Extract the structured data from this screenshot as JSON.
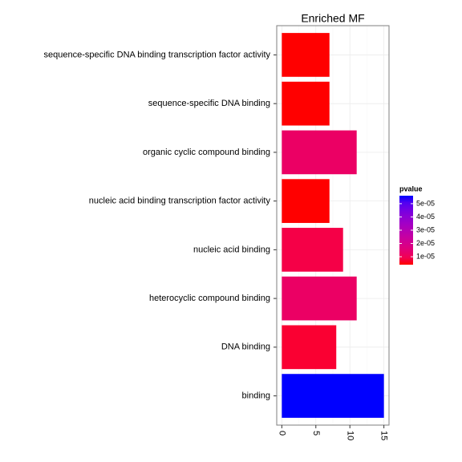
{
  "chart_data": {
    "type": "bar",
    "orientation": "horizontal",
    "title": "Enriched MF",
    "categories": [
      "sequence-specific DNA binding transcription factor activity",
      "sequence-specific DNA binding",
      "organic cyclic compound binding",
      "nucleic acid binding transcription factor activity",
      "nucleic acid binding",
      "heterocyclic compound binding",
      "DNA binding",
      "binding"
    ],
    "values": [
      7,
      7,
      11,
      7,
      9,
      11,
      8,
      15
    ],
    "pvalues": [
      4e-06,
      4e-06,
      1.2e-05,
      4e-06,
      8e-06,
      1.2e-05,
      6e-06,
      5.6e-05
    ],
    "xlim": [
      -0.75,
      15.75
    ],
    "xticks": [
      0,
      5,
      10,
      15
    ],
    "grid": true,
    "color_scale": {
      "low": "#ff0000",
      "high": "#0000ff"
    },
    "legend": {
      "title": "pvalue",
      "position": "right",
      "lim": [
        4e-06,
        5.6e-05
      ],
      "ticks": [
        {
          "value": 1e-05,
          "label": "1e-05"
        },
        {
          "value": 2e-05,
          "label": "2e-05"
        },
        {
          "value": 3e-05,
          "label": "3e-05"
        },
        {
          "value": 4e-05,
          "label": "4e-05"
        },
        {
          "value": 5e-05,
          "label": "5e-05"
        }
      ]
    }
  }
}
